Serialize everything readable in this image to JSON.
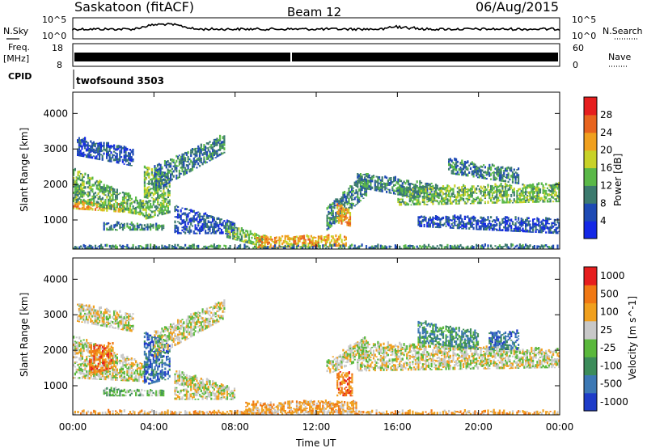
{
  "header": {
    "title": "Saskatoon (fitACF)",
    "beam": "Beam 12",
    "date": "06/Aug/2015"
  },
  "panels": {
    "nsky_label": "N.Sky",
    "nsearch_label": "N.Search",
    "noise_ticks_top": "10^5",
    "noise_ticks_bottom": "10^0",
    "freq_label_line1": "Freq.",
    "freq_label_line2": "[MHz]",
    "freq_ticks": [
      "18",
      "8"
    ],
    "nave_label": "Nave",
    "nave_ticks": [
      "60",
      "0"
    ],
    "cpid_label": "CPID",
    "cpid_value": "twofsound 3503"
  },
  "chart_data": [
    {
      "type": "heatmap",
      "title": "Power",
      "ylabel": "Slant Range [km]",
      "xlabel": "Time UT",
      "x_ticks": [
        "00:00",
        "04:00",
        "08:00",
        "12:00",
        "16:00",
        "20:00",
        "00:00"
      ],
      "y_ticks": [
        "1000",
        "2000",
        "3000",
        "4000"
      ],
      "xlim_hours": [
        0,
        24
      ],
      "ylim_km": [
        180,
        4600
      ],
      "colorbar": {
        "label": "Power [dB]",
        "ticks": [
          "4",
          "8",
          "12",
          "16",
          "20",
          "24",
          "28"
        ],
        "colors": [
          "#1428e6",
          "#1e4ab4",
          "#3c7a6e",
          "#5ab848",
          "#c8d228",
          "#f0a01e",
          "#e8641e",
          "#e61e1e"
        ]
      },
      "echo_bands": [
        {
          "t0": 0.0,
          "t1": 2.5,
          "r0": 1300,
          "r1": 1500,
          "r_end0": 1200,
          "r_end1": 1400,
          "level": 5
        },
        {
          "t0": 0.0,
          "t1": 3.5,
          "r0": 1500,
          "r1": 2400,
          "r_end0": 1100,
          "r_end1": 1500,
          "level": 3
        },
        {
          "t0": 0.2,
          "t1": 3.0,
          "r0": 2800,
          "r1": 3300,
          "r_end0": 2500,
          "r_end1": 3000,
          "level": 1
        },
        {
          "t0": 1.5,
          "t1": 4.5,
          "r0": 700,
          "r1": 900,
          "r_end0": 700,
          "r_end1": 850,
          "level": 2
        },
        {
          "t0": 3.5,
          "t1": 4.8,
          "r0": 1000,
          "r1": 2500,
          "r_end0": 1200,
          "r_end1": 2200,
          "level": 3
        },
        {
          "t0": 4.0,
          "t1": 7.5,
          "r0": 1800,
          "r1": 2500,
          "r_end0": 2900,
          "r_end1": 3400,
          "level": 2
        },
        {
          "t0": 5.0,
          "t1": 8.0,
          "r0": 600,
          "r1": 1400,
          "r_end0": 600,
          "r_end1": 900,
          "level": 1
        },
        {
          "t0": 7.5,
          "t1": 9.5,
          "r0": 500,
          "r1": 900,
          "r_end0": 200,
          "r_end1": 500,
          "level": 3
        },
        {
          "t0": 9.0,
          "t1": 13.5,
          "r0": 200,
          "r1": 500,
          "r_end0": 250,
          "r_end1": 550,
          "level": 5
        },
        {
          "t0": 12.5,
          "t1": 14.5,
          "r0": 700,
          "r1": 1300,
          "r_end0": 1700,
          "r_end1": 2400,
          "level": 2
        },
        {
          "t0": 13.0,
          "t1": 13.7,
          "r0": 900,
          "r1": 1400,
          "r_end0": 800,
          "r_end1": 1300,
          "level": 5
        },
        {
          "t0": 14.0,
          "t1": 18.0,
          "r0": 1900,
          "r1": 2300,
          "r_end0": 1500,
          "r_end1": 2000,
          "level": 2
        },
        {
          "t0": 16.0,
          "t1": 24.0,
          "r0": 1400,
          "r1": 1900,
          "r_end0": 1500,
          "r_end1": 2000,
          "level": 3
        },
        {
          "t0": 17.0,
          "t1": 24.0,
          "r0": 800,
          "r1": 1100,
          "r_end0": 600,
          "r_end1": 1000,
          "level": 1
        },
        {
          "t0": 18.5,
          "t1": 22.0,
          "r0": 2300,
          "r1": 2700,
          "r_end0": 2000,
          "r_end1": 2400,
          "level": 2
        },
        {
          "t0": 0.0,
          "t1": 24.0,
          "r0": 180,
          "r1": 260,
          "r_end0": 180,
          "r_end1": 260,
          "level": 2
        }
      ]
    },
    {
      "type": "heatmap",
      "title": "Velocity",
      "ylabel": "Slant Range [km]",
      "xlabel": "Time UT",
      "x_ticks": [
        "00:00",
        "04:00",
        "08:00",
        "12:00",
        "16:00",
        "20:00",
        "00:00"
      ],
      "y_ticks": [
        "1000",
        "2000",
        "3000",
        "4000"
      ],
      "xlim_hours": [
        0,
        24
      ],
      "ylim_km": [
        180,
        4600
      ],
      "colorbar": {
        "label": "Velocity [m s^-1]",
        "ticks": [
          "1000",
          "500",
          "100",
          "25",
          "-25",
          "-100",
          "-500",
          "-1000"
        ],
        "colors": [
          "#1e3cc8",
          "#3c78b4",
          "#3c8c5a",
          "#5ab83c",
          "#c8c8c8",
          "#f0a01e",
          "#f07814",
          "#e61e1e"
        ]
      },
      "echo_bands": [
        {
          "t0": 0.0,
          "t1": 3.5,
          "r0": 1200,
          "r1": 2400,
          "r_end0": 1100,
          "r_end1": 1600,
          "level": 4
        },
        {
          "t0": 0.2,
          "t1": 3.0,
          "r0": 2800,
          "r1": 3300,
          "r_end0": 2500,
          "r_end1": 3000,
          "level": 4
        },
        {
          "t0": 0.8,
          "t1": 2.0,
          "r0": 1300,
          "r1": 2100,
          "r_end0": 1500,
          "r_end1": 2200,
          "level": 6
        },
        {
          "t0": 1.5,
          "t1": 4.5,
          "r0": 700,
          "r1": 900,
          "r_end0": 700,
          "r_end1": 850,
          "level": 3
        },
        {
          "t0": 3.5,
          "t1": 4.8,
          "r0": 1000,
          "r1": 2500,
          "r_end0": 1200,
          "r_end1": 2200,
          "level": 1
        },
        {
          "t0": 4.0,
          "t1": 7.5,
          "r0": 1800,
          "r1": 2500,
          "r_end0": 2900,
          "r_end1": 3400,
          "level": 4
        },
        {
          "t0": 5.0,
          "t1": 8.0,
          "r0": 600,
          "r1": 1400,
          "r_end0": 600,
          "r_end1": 900,
          "level": 4
        },
        {
          "t0": 8.5,
          "t1": 14.0,
          "r0": 200,
          "r1": 500,
          "r_end0": 250,
          "r_end1": 550,
          "level": 5
        },
        {
          "t0": 13.0,
          "t1": 13.8,
          "r0": 700,
          "r1": 1400,
          "r_end0": 700,
          "r_end1": 1300,
          "level": 6
        },
        {
          "t0": 12.5,
          "t1": 14.5,
          "r0": 1300,
          "r1": 1700,
          "r_end0": 1800,
          "r_end1": 2400,
          "level": 4
        },
        {
          "t0": 14.0,
          "t1": 24.0,
          "r0": 1400,
          "r1": 2200,
          "r_end0": 1500,
          "r_end1": 2000,
          "level": 4
        },
        {
          "t0": 17.0,
          "t1": 20.0,
          "r0": 2200,
          "r1": 2800,
          "r_end0": 2000,
          "r_end1": 2500,
          "level": 2
        },
        {
          "t0": 20.5,
          "t1": 22.0,
          "r0": 2000,
          "r1": 2500,
          "r_end0": 2000,
          "r_end1": 2500,
          "level": 1
        },
        {
          "t0": 0.0,
          "t1": 24.0,
          "r0": 180,
          "r1": 260,
          "r_end0": 180,
          "r_end1": 260,
          "level": 5
        }
      ]
    }
  ]
}
